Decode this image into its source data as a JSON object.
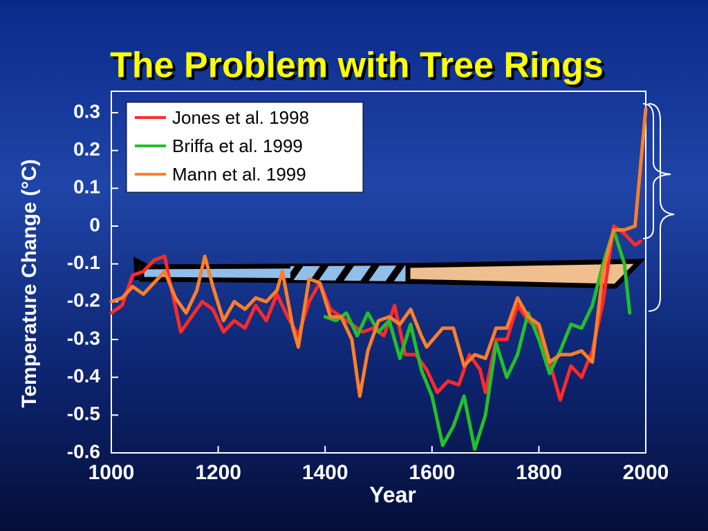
{
  "chart_data": {
    "type": "line",
    "title": "The Problem with Tree Rings",
    "x_label": "Year",
    "y_label": "Temperature Change (°C)",
    "xlim": [
      1000,
      2000
    ],
    "xticks": [
      1000,
      1200,
      1400,
      1600,
      1800,
      2000
    ],
    "ylim": [
      -0.6,
      0.3
    ],
    "yticks": [
      0.3,
      0.2,
      0.1,
      0,
      -0.1,
      -0.2,
      -0.3,
      -0.4,
      -0.5,
      -0.6
    ],
    "series": [
      {
        "name": "Jones et al. 1998",
        "color": "#ff2a2a",
        "x": [
          1000,
          1020,
          1040,
          1060,
          1080,
          1100,
          1110,
          1130,
          1150,
          1170,
          1190,
          1210,
          1230,
          1250,
          1270,
          1290,
          1310,
          1330,
          1350,
          1370,
          1390,
          1410,
          1430,
          1450,
          1470,
          1490,
          1510,
          1530,
          1550,
          1570,
          1590,
          1610,
          1630,
          1650,
          1670,
          1690,
          1700,
          1720,
          1740,
          1760,
          1780,
          1800,
          1820,
          1840,
          1860,
          1880,
          1900,
          1920,
          1940,
          1960,
          1980,
          1990
        ],
        "values": [
          -0.23,
          -0.21,
          -0.13,
          -0.12,
          -0.09,
          -0.08,
          -0.15,
          -0.28,
          -0.24,
          -0.2,
          -0.22,
          -0.28,
          -0.25,
          -0.27,
          -0.21,
          -0.25,
          -0.18,
          -0.24,
          -0.29,
          -0.2,
          -0.15,
          -0.22,
          -0.24,
          -0.26,
          -0.28,
          -0.27,
          -0.29,
          -0.21,
          -0.34,
          -0.34,
          -0.38,
          -0.44,
          -0.41,
          -0.42,
          -0.34,
          -0.38,
          -0.44,
          -0.3,
          -0.3,
          -0.21,
          -0.25,
          -0.27,
          -0.36,
          -0.46,
          -0.37,
          -0.4,
          -0.33,
          -0.2,
          0,
          -0.02,
          -0.05,
          -0.04
        ]
      },
      {
        "name": "Briffa et al. 1999",
        "color": "#22c02a",
        "x": [
          1400,
          1420,
          1440,
          1460,
          1480,
          1500,
          1520,
          1540,
          1560,
          1580,
          1600,
          1620,
          1640,
          1660,
          1680,
          1700,
          1720,
          1740,
          1760,
          1780,
          1800,
          1820,
          1840,
          1860,
          1880,
          1900,
          1920,
          1940,
          1960,
          1970
        ],
        "values": [
          -0.24,
          -0.25,
          -0.23,
          -0.29,
          -0.23,
          -0.28,
          -0.25,
          -0.35,
          -0.26,
          -0.38,
          -0.45,
          -0.58,
          -0.53,
          -0.45,
          -0.59,
          -0.5,
          -0.31,
          -0.4,
          -0.34,
          -0.23,
          -0.3,
          -0.39,
          -0.33,
          -0.26,
          -0.27,
          -0.21,
          -0.1,
          -0.01,
          -0.1,
          -0.23
        ]
      },
      {
        "name": "Mann et al. 1999",
        "color": "#ff7f2a",
        "x": [
          1000,
          1020,
          1040,
          1060,
          1080,
          1100,
          1120,
          1140,
          1160,
          1175,
          1190,
          1210,
          1230,
          1250,
          1270,
          1290,
          1310,
          1320,
          1340,
          1350,
          1370,
          1390,
          1410,
          1430,
          1450,
          1465,
          1480,
          1500,
          1520,
          1540,
          1560,
          1580,
          1590,
          1620,
          1640,
          1660,
          1680,
          1700,
          1720,
          1740,
          1760,
          1780,
          1800,
          1820,
          1840,
          1860,
          1880,
          1900,
          1920,
          1940,
          1960,
          1980,
          2000
        ],
        "values": [
          -0.2,
          -0.19,
          -0.16,
          -0.18,
          -0.15,
          -0.12,
          -0.19,
          -0.23,
          -0.17,
          -0.08,
          -0.16,
          -0.25,
          -0.2,
          -0.22,
          -0.19,
          -0.2,
          -0.17,
          -0.12,
          -0.27,
          -0.32,
          -0.14,
          -0.15,
          -0.24,
          -0.24,
          -0.3,
          -0.45,
          -0.33,
          -0.25,
          -0.24,
          -0.26,
          -0.22,
          -0.29,
          -0.32,
          -0.27,
          -0.27,
          -0.37,
          -0.34,
          -0.35,
          -0.27,
          -0.27,
          -0.19,
          -0.24,
          -0.26,
          -0.36,
          -0.34,
          -0.34,
          -0.33,
          -0.36,
          -0.12,
          -0.01,
          -0.01,
          0,
          0.31
        ]
      }
    ]
  }
}
